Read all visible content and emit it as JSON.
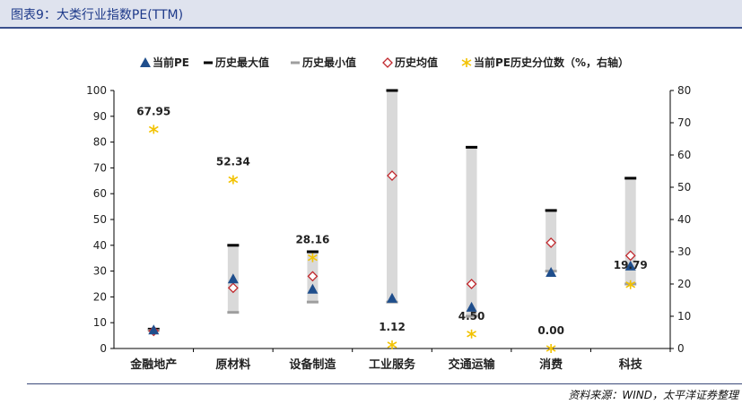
{
  "header": {
    "title": "图表9：大类行业指数PE(TTM)"
  },
  "footer": {
    "source": "资料来源：WIND，太平洋证券整理"
  },
  "chart_data": {
    "type": "bar",
    "categories": [
      "金融地产",
      "原材料",
      "设备制造",
      "工业服务",
      "交通运输",
      "消费",
      "科技"
    ],
    "left_axis": {
      "min": 0,
      "max": 100,
      "ticks": [
        0,
        10,
        20,
        30,
        40,
        50,
        60,
        70,
        80,
        90,
        100
      ]
    },
    "right_axis": {
      "min": 0,
      "max": 80,
      "ticks": [
        0,
        10,
        20,
        30,
        40,
        50,
        60,
        70,
        80
      ]
    },
    "legend": {
      "position": "top",
      "items": [
        {
          "key": "current_pe",
          "label": "当前PE",
          "marker": "triangle",
          "color": "#1f4e8c"
        },
        {
          "key": "hist_max",
          "label": "历史最大值",
          "marker": "dash",
          "color": "#000000"
        },
        {
          "key": "hist_min",
          "label": "历史最小值",
          "marker": "dash",
          "color": "#9e9e9e"
        },
        {
          "key": "hist_avg",
          "label": "历史均值",
          "marker": "diamond",
          "color": "#c0282d"
        },
        {
          "key": "percentile",
          "label": "当前PE历史分位数（%，右轴）",
          "marker": "star",
          "color": "#f2c200"
        }
      ]
    },
    "range_bar_color": "#d9d9d9",
    "series": {
      "hist_max": [
        7.5,
        40,
        37.5,
        100,
        78,
        53.5,
        66
      ],
      "hist_min": [
        7,
        14,
        18,
        18,
        12.5,
        30,
        25
      ],
      "hist_avg": [
        6.8,
        23.5,
        28,
        67,
        25,
        41,
        36
      ],
      "current_pe": [
        7.2,
        27,
        23,
        19.5,
        16,
        29.5,
        32
      ],
      "percentile": [
        67.95,
        52.34,
        28.16,
        1.12,
        4.5,
        0.0,
        19.79
      ]
    },
    "percentile_labels": [
      "67.95",
      "52.34",
      "28.16",
      "1.12",
      "4.50",
      "0.00",
      "19.79"
    ]
  }
}
